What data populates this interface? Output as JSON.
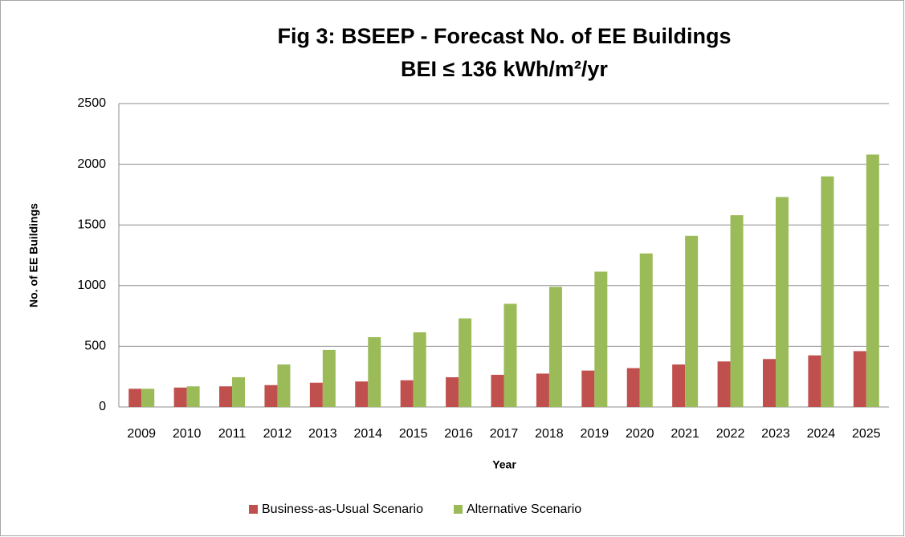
{
  "chart_data": {
    "type": "bar",
    "title": "Fig 3: BSEEP - Forecast No. of EE Buildings",
    "subtitle": "BEI ≤ 136 kWh/m²/yr",
    "x_label": "Year",
    "y_label": "No. of EE Buildings",
    "categories": [
      "2009",
      "2010",
      "2011",
      "2012",
      "2013",
      "2014",
      "2015",
      "2016",
      "2017",
      "2018",
      "2019",
      "2020",
      "2021",
      "2022",
      "2023",
      "2024",
      "2025"
    ],
    "series": [
      {
        "name": "Business-as-Usual Scenario",
        "color": "#c0504d",
        "values": [
          150,
          160,
          170,
          180,
          200,
          210,
          220,
          245,
          265,
          275,
          300,
          320,
          350,
          375,
          395,
          425,
          460
        ]
      },
      {
        "name": "Alternative Scenario",
        "color": "#9bbb59",
        "values": [
          150,
          170,
          245,
          350,
          470,
          575,
          615,
          730,
          850,
          990,
          1115,
          1265,
          1410,
          1580,
          1730,
          1900,
          2080
        ]
      }
    ],
    "ylim": [
      0,
      2500
    ],
    "yticks": [
      0,
      500,
      1000,
      1500,
      2000,
      2500
    ],
    "grid": true,
    "legend": "bottom"
  }
}
